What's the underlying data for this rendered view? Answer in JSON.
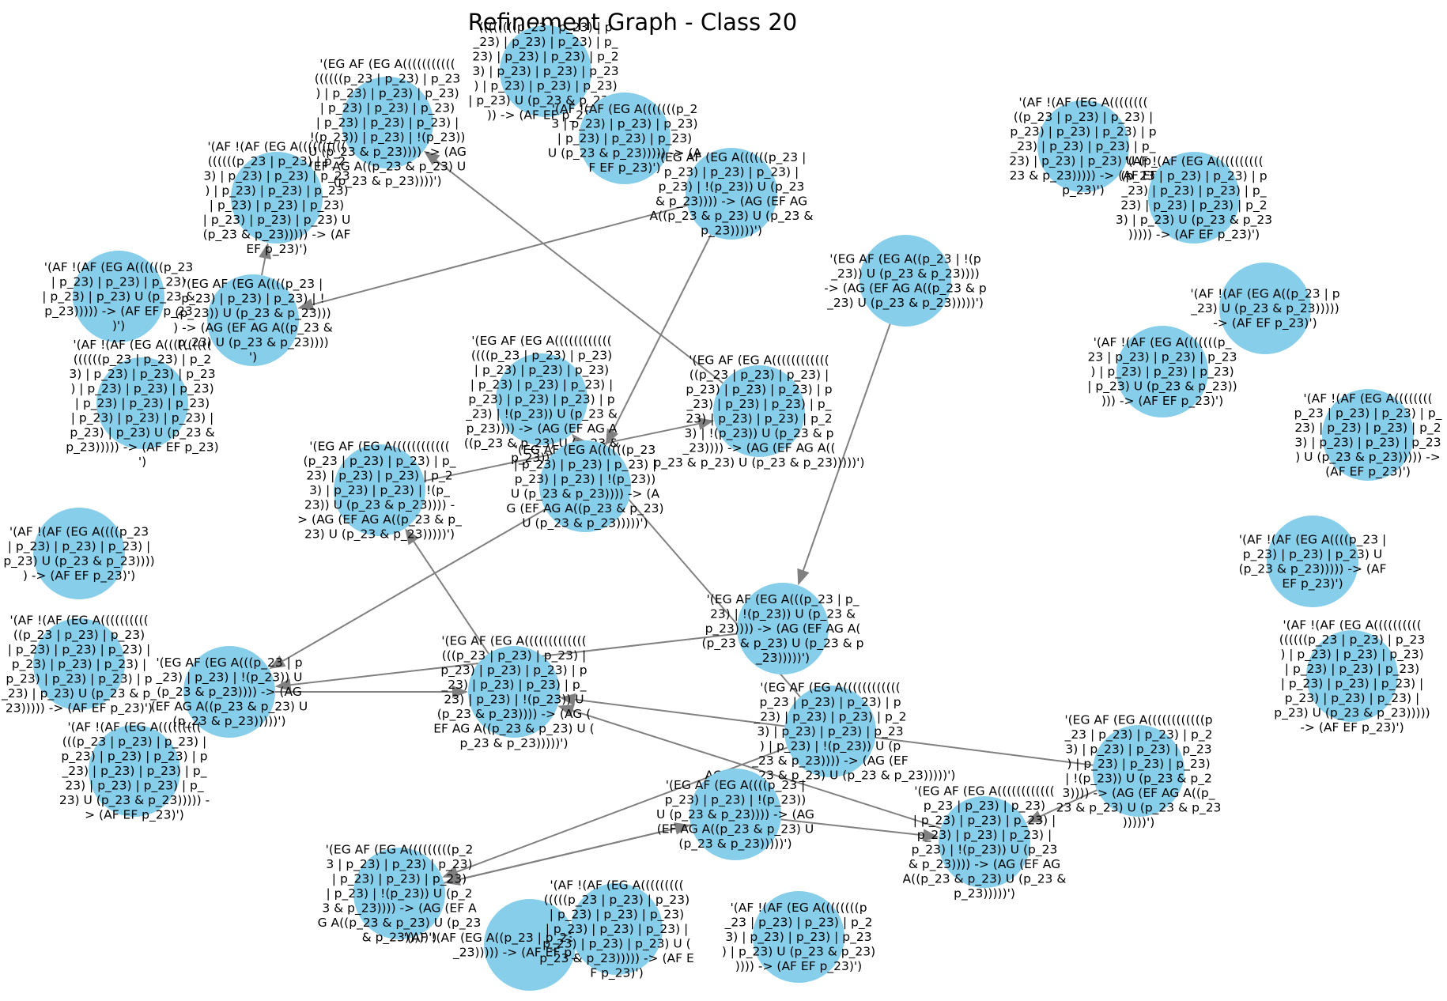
{
  "title": "Refinement Graph - Class 20",
  "colors": {
    "node": "#87ceeb",
    "edge": "#808080",
    "text": "#000000",
    "background": "#ffffff"
  },
  "nodes": [
    {
      "id": "n1",
      "label": "'(EG AF (EG A(((((((((((\n((((((p_23 | p_23) | p_23\n) | p_23) | p_23) | p_23)\n| p_23) | p_23) | p_23)\n| p_23) | p_23) | p_23) |\n!(p_23)) | p_23) | !(p_23))\nU (p_23 & p_23)))) -> (AG\n(EF AG A((p_23 & p_23) U\n(p_23 & p_23))))')"
    },
    {
      "id": "n2",
      "label": "((((((((p_23 | p_23) | p\n_23) | p_23) | p_23) | p_\n23) | p_23) | p_23) | p_2\n3) | p_23) | p_23) | p_23\n) | p_23) | p_23) | p_23)\n| p_23) U (p_23 & p_23)))\n)) -> (AF EF p_23)')"
    },
    {
      "id": "n3",
      "label": "'(AF !(AF (EG A(((((((p_2\n3 | p_23) | p_23) | p_23)\n| p_23) | p_23) | p_23)\nU (p_23 & p_23))))) -> (A\nF EF p_23)')"
    },
    {
      "id": "n4",
      "label": "'(AF !(AF (EG A((((((((\n((p_23 | p_23) | p_23) |\np_23) | p_23) | p_23) | p\n_23) | p_23) | p_23) | p_\n23) | p_23) | p_23) U (p_\n23 & p_23))))) -> (AF EF\np_23)')"
    },
    {
      "id": "n5",
      "label": "'(AF !(AF (EG A((((((((((\n((((((p_23 | p_23) | p_2\n3) | p_23) | p_23) | p_23\n) | p_23) | p_23) | p_23)\n| p_23) | p_23) | p_23)\n| p_23) | p_23) | p_23) U\n(p_23 & p_23))))) -> (AF\nEF p_23)')"
    },
    {
      "id": "n6",
      "label": "'(EG AF (EG A((((((p_23 |\np_23) | p_23) | p_23) |\np_23) | !(p_23)) U (p_23\n& p_23)))) -> (AG (EF AG\nA((p_23 & p_23) U (p_23 &\np_23)))))')"
    },
    {
      "id": "n7",
      "label": "'(AF !(AF (EG A((((((((((\n(p_23 | p_23) | p_23) | p\n_23) | p_23) | p_23) | p_\n23) | p_23) | p_23) | p_2\n3) | p_23) U (p_23 & p_23\n))))) -> (AF EF p_23)')"
    },
    {
      "id": "n8",
      "label": "'(EG AF (EG A((p_23 | !(p\n_23)) U (p_23 & p_23))))\n-> (AG (EF AG A((p_23 & p\n_23) U (p_23 & p_23)))))')"
    },
    {
      "id": "n9",
      "label": "'(AF !(AF (EG A((((((p_23\n| p_23) | p_23) | p_23)\n| p_23) | p_23) U (p_23 &\np_23))))) -> (AF EF p_23\n)')"
    },
    {
      "id": "n10",
      "label": "'(EG AF (EG A((((p_23 |\np_23) | p_23) | p_23) | !\n(p_23)) U (p_23 & p_23)))\n) -> (AG (EF AG A((p_23 &\np_23) U (p_23 & p_23))))\n')"
    },
    {
      "id": "n11",
      "label": "'(AF !(AF (EG A((p_23 | p\n_23) U (p_23 & p_23)))))\n-> (AF EF p_23)')"
    },
    {
      "id": "n12",
      "label": "'(AF !(AF (EG A(((((((p_\n23 | p_23) | p_23) | p_23\n) | p_23) | p_23) | p_23)\n| p_23) U (p_23 & p_23))\n))) -> (AF EF p_23)')"
    },
    {
      "id": "n13",
      "label": "'(AF !(AF (EG A((((((((((\n((((((p_23 | p_23) | p_2\n3) | p_23) | p_23) | p_23\n) | p_23) | p_23) | p_23)\n| p_23) | p_23) | p_23)\n| p_23) | p_23) | p_23) |\np_23) | p_23) U (p_23 &\np_23))))) -> (AF EF p_23)\n')"
    },
    {
      "id": "n14",
      "label": "'(EG AF (EG A((((((((((((\n((p_23 | p_23) | p_23) |\np_23) | p_23) | p_23) | p\n_23) | p_23) | p_23) | p_\n23) | p_23) | p_23) | p_2\n3) | !(p_23)) U (p_23 & p\n_23)))) -> (AG (EF AG A((\np_23 & p_23) U (p_23 & p_23)))))')"
    },
    {
      "id": "n15",
      "label": "'(EG AF (EG A((((((((((((\n((((p_23 | p_23) | p_23)\n| p_23) | p_23) | p_23)\n| p_23) | p_23) | p_23) |\np_23) | p_23) | p_23) | p\n_23) | !(p_23)) U (p_23 &\np_23)))) -> (AG (EF AG A\n((p_23 & p_23) U (p_23 &\np_23)))))')"
    },
    {
      "id": "n16",
      "label": "'(AF !(AF (EG A((((((((\np_23 | p_23) | p_23) | p_\n23) | p_23) | p_23) | p_2\n3) | p_23) | p_23) | p_23\n) U (p_23 & p_23))))) ->\n(AF EF p_23)')"
    },
    {
      "id": "n17",
      "label": "'(EG AF (EG A((((((((((((\n(p_23 | p_23) | p_23) | p_\n23) | p_23) | p_23) | p_2\n3) | p_23) | p_23) | !(p_\n23)) U (p_23 & p_23)))) -\n> (AG (EF AG A((p_23 & p_\n23) U (p_23 & p_23)))))')"
    },
    {
      "id": "n18",
      "label": "'(EG AF (EG A((((((p_23\n| p_23) | p_23) | p_23) |\np_23) | p_23) | !(p_23))\nU (p_23 & p_23)))) -> (A\nG (EF AG A((p_23 & p_23)\nU (p_23 & p_23)))))')"
    },
    {
      "id": "n19",
      "label": "'(AF !(AF (EG A((((p_23\n| p_23) | p_23) | p_23) |\np_23) U (p_23 & p_23))))\n) -> (AF EF p_23)')"
    },
    {
      "id": "n20",
      "label": "'(AF !(AF (EG A((((p_23 |\np_23) | p_23) | p_23) U\n(p_23 & p_23))))) -> (AF\nEF p_23)')"
    },
    {
      "id": "n21",
      "label": "'(EG AF (EG A(((p_23 | p_\n23) | !(p_23)) U (p_23 &\np_23)))) -> (AG (EF AG A(\n(p_23 & p_23) U (p_23 & p\n_23)))))')"
    },
    {
      "id": "n22",
      "label": "'(AF !(AF (EG A((((((((((\n((((((p_23 | p_23) | p_23\n) | p_23) | p_23) | p_23)\n| p_23) | p_23) | p_23)\n| p_23) | p_23) | p_23) |\np_23) | p_23) | p_23) |\np_23) U (p_23 & p_23)))))\n-> (AF EF p_23)')"
    },
    {
      "id": "n23",
      "label": "'(AF !(AF (EG A((((((((((\n((p_23 | p_23) | p_23)\n| p_23) | p_23) | p_23) |\np_23) | p_23) | p_23) |\np_23) | p_23) | p_23) | p\n_23) | p_23) U (p_23 & p_\n23))))) -> (AF EF p_23)')"
    },
    {
      "id": "n24",
      "label": "'(EG AF (EG A(((p_23 | p\n_23) | p_23) | !(p_23)) U\n(p_23 & p_23)))) -> (AG\n(EF AG A((p_23 & p_23) U\n(p_23 & p_23)))))')"
    },
    {
      "id": "n25",
      "label": "'(AF !(AF (EG A(((((((((\n(((p_23 | p_23) | p_23) |\np_23) | p_23) | p_23) | p\n_23) | p_23) | p_23) | p_\n23) | p_23) | p_23) | p_\n23) U (p_23 & p_23))))) -\n> (AF EF p_23)')"
    },
    {
      "id": "n26",
      "label": "'(EG AF (EG A(((((((((((((\n(((p_23 | p_23) | p_23) |\np_23) | p_23) | p_23) | p\n_23) | p_23) | p_23) | p_\n23) | p_23) | !(p_23)) U\n(p_23 & p_23)))) -> (AG (\nEF AG A((p_23 & p_23) U (\np_23 & p_23)))))')"
    },
    {
      "id": "n27",
      "label": "'(EG AF (EG A((((((((((((\np_23 | p_23) | p_23) | p\n_23) | p_23) | p_23) | p_2\n3) | p_23) | p_23) | p_23\n) | p_23) | !(p_23)) U (p\n_23 & p_23)))) -> (AG (EF\nAG A((p_23 & p_23) U (p_23 & p_23)))))')"
    },
    {
      "id": "n28",
      "label": "'(EG AF (EG A((((((((((((p\n_23 | p_23) | p_23) | p_2\n3) | p_23) | p_23) | p_23\n) | p_23) | p_23) | p_23)\n| !(p_23)) U (p_23 & p_2\n3)))) -> (AG (EF AG A((p_\n23 & p_23) U (p_23 & p_23\n)))))')"
    },
    {
      "id": "n29",
      "label": "'(EG AF (EG A((((p_23 |\np_23) | p_23) | !(p_23))\nU (p_23 & p_23)))) -> (AG\n(EF AG A((p_23 & p_23) U\n(p_23 & p_23)))))')"
    },
    {
      "id": "n30",
      "label": "'(EG AF (EG A((((((((((((\np_23 | p_23) | p_23)\n| p_23) | p_23) | p_23) |\np_23) | p_23) | p_23) |\np_23) | !(p_23)) U (p_23\n& p_23)))) -> (AG (EF AG\nA((p_23 & p_23) U (p_23 &\np_23)))))')"
    },
    {
      "id": "n31",
      "label": "'(EG AF (EG A(((((((((p_2\n3 | p_23) | p_23) | p_23)\n| p_23) | p_23) | p_23)\n| p_23) | !(p_23)) U (p_2\n3 & p_23)))) -> (AG (EF A\nG A((p_23 & p_23) U (p_23\n& p_23)))))')"
    },
    {
      "id": "n32",
      "label": "'(AF !(AF (EG A((p_23 | p_23) U (p_23 & p\n_23))))) -> (AF EF p_23)')"
    },
    {
      "id": "n33",
      "label": "'(AF !(AF (EG A(((((((((\n(((((p_23 | p_23) | p_23)\n| p_23) | p_23) | p_23)\n| p_23) | p_23) | p_23) |\np_23) | p_23) | p_23) U (\np_23 & p_23))))) -> (AF E\nF p_23)')"
    },
    {
      "id": "n34",
      "label": "'(AF !(AF (EG A((((((((p\n_23 | p_23) | p_23) | p_2\n3) | p_23) | p_23) | p_23\n) | p_23) U (p_23 & p_23)\n)))) -> (AF EF p_23)')"
    }
  ],
  "edges": [
    {
      "from": "n6",
      "to": "n10"
    },
    {
      "from": "n6",
      "to": "n18"
    },
    {
      "from": "n8",
      "to": "n21"
    },
    {
      "from": "n10",
      "to": "n5"
    },
    {
      "from": "n14",
      "to": "n1"
    },
    {
      "from": "n18",
      "to": "n24"
    },
    {
      "from": "n21",
      "to": "n24"
    },
    {
      "from": "n26",
      "to": "n17"
    },
    {
      "from": "n28",
      "to": "n26"
    },
    {
      "from": "n28",
      "to": "n30"
    },
    {
      "from": "n29",
      "to": "n31"
    },
    {
      "from": "n31",
      "to": "n29"
    },
    {
      "from": "n27",
      "to": "n15"
    },
    {
      "from": "n24",
      "to": "n26"
    },
    {
      "from": "n17",
      "to": "n14"
    },
    {
      "from": "n30",
      "to": "n26"
    },
    {
      "from": "n27",
      "to": "n31"
    },
    {
      "from": "n29",
      "to": "n30"
    }
  ]
}
